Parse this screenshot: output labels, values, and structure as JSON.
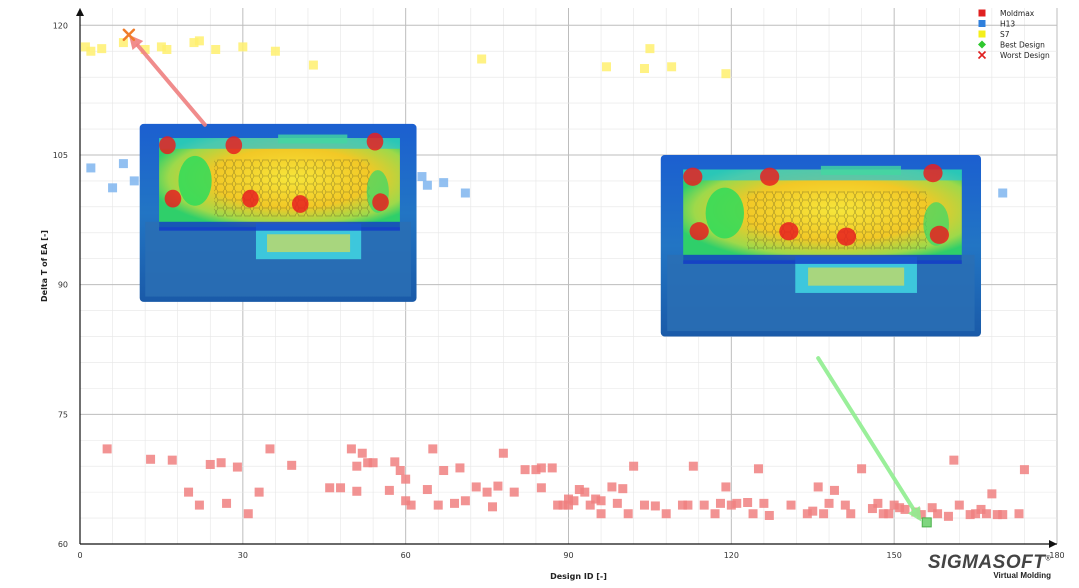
{
  "chart_data": {
    "type": "scatter",
    "xlabel": "Design ID [-]",
    "ylabel": "Delta T of EA [-]",
    "xlim": [
      0,
      180
    ],
    "ylim": [
      60,
      122
    ],
    "x_ticks": [
      "0",
      "30",
      "60",
      "90",
      "120",
      "150",
      "180"
    ],
    "x_tick_values": [
      0,
      30,
      60,
      90,
      120,
      150,
      180
    ],
    "y_ticks": [
      "60",
      "75",
      "90",
      "105",
      "120"
    ],
    "y_tick_values": [
      60,
      75,
      90,
      105,
      120
    ],
    "grid": true,
    "legend_position": "top-right",
    "series": [
      {
        "name": "Moldmax",
        "color": "#f08080",
        "points": [
          [
            5,
            71
          ],
          [
            13,
            69.8
          ],
          [
            17,
            69.7
          ],
          [
            20,
            66
          ],
          [
            22,
            64.5
          ],
          [
            24,
            69.2
          ],
          [
            26,
            69.4
          ],
          [
            27,
            64.7
          ],
          [
            29,
            68.9
          ],
          [
            31,
            63.5
          ],
          [
            33,
            66
          ],
          [
            35,
            71
          ],
          [
            39,
            69.1
          ],
          [
            46,
            66.5
          ],
          [
            48,
            66.5
          ],
          [
            50,
            71
          ],
          [
            51,
            69
          ],
          [
            51,
            66.1
          ],
          [
            52,
            70.5
          ],
          [
            53,
            69.4
          ],
          [
            54,
            69.4
          ],
          [
            57,
            66.2
          ],
          [
            58,
            69.5
          ],
          [
            59,
            68.5
          ],
          [
            60,
            67.5
          ],
          [
            60,
            65
          ],
          [
            61,
            64.5
          ],
          [
            64,
            66.3
          ],
          [
            65,
            71
          ],
          [
            66,
            64.5
          ],
          [
            67,
            68.5
          ],
          [
            69,
            64.7
          ],
          [
            70,
            68.8
          ],
          [
            71,
            65
          ],
          [
            73,
            66.6
          ],
          [
            75,
            66
          ],
          [
            76,
            64.3
          ],
          [
            77,
            66.7
          ],
          [
            78,
            70.5
          ],
          [
            80,
            66
          ],
          [
            82,
            68.6
          ],
          [
            84,
            68.6
          ],
          [
            85,
            66.5
          ],
          [
            85,
            68.8
          ],
          [
            87,
            68.8
          ],
          [
            88,
            64.5
          ],
          [
            89,
            64.5
          ],
          [
            90,
            64.5
          ],
          [
            90,
            65.2
          ],
          [
            91,
            65
          ],
          [
            92,
            66.3
          ],
          [
            93,
            66
          ],
          [
            94,
            64.5
          ],
          [
            95,
            65.2
          ],
          [
            96,
            65
          ],
          [
            96,
            63.5
          ],
          [
            98,
            66.6
          ],
          [
            99,
            64.7
          ],
          [
            100,
            66.4
          ],
          [
            101,
            63.5
          ],
          [
            102,
            69
          ],
          [
            104,
            64.5
          ],
          [
            106,
            64.4
          ],
          [
            108,
            63.5
          ],
          [
            111,
            64.5
          ],
          [
            112,
            64.5
          ],
          [
            113,
            69
          ],
          [
            115,
            64.5
          ],
          [
            117,
            63.5
          ],
          [
            118,
            64.7
          ],
          [
            119,
            66.6
          ],
          [
            120,
            64.5
          ],
          [
            121,
            64.7
          ],
          [
            123,
            64.8
          ],
          [
            124,
            63.5
          ],
          [
            125,
            68.7
          ],
          [
            126,
            64.7
          ],
          [
            127,
            63.3
          ],
          [
            131,
            64.5
          ],
          [
            134,
            63.5
          ],
          [
            135,
            63.8
          ],
          [
            136,
            66.6
          ],
          [
            137,
            63.5
          ],
          [
            138,
            64.7
          ],
          [
            139,
            66.2
          ],
          [
            141,
            64.5
          ],
          [
            142,
            63.5
          ],
          [
            144,
            68.7
          ],
          [
            146,
            64.1
          ],
          [
            147,
            64.7
          ],
          [
            148,
            63.5
          ],
          [
            149,
            63.5
          ],
          [
            150,
            64.5
          ],
          [
            151,
            64.2
          ],
          [
            152,
            64
          ],
          [
            154,
            63.7
          ],
          [
            155,
            63.4
          ],
          [
            157,
            64.2
          ],
          [
            158,
            63.5
          ],
          [
            160,
            63.2
          ],
          [
            161,
            69.7
          ],
          [
            162,
            64.5
          ],
          [
            164,
            63.4
          ],
          [
            165,
            63.5
          ],
          [
            166,
            64
          ],
          [
            167,
            63.5
          ],
          [
            168,
            65.8
          ],
          [
            169,
            63.4
          ],
          [
            170,
            63.4
          ],
          [
            173,
            63.5
          ],
          [
            174,
            68.6
          ]
        ]
      },
      {
        "name": "H13",
        "color": "#7fb5ee",
        "points": [
          [
            2,
            103.5
          ],
          [
            6,
            101.2
          ],
          [
            8,
            104
          ],
          [
            10,
            102
          ],
          [
            12,
            103.7
          ],
          [
            14,
            103.5
          ],
          [
            63,
            102.5
          ],
          [
            64,
            101.5
          ],
          [
            67,
            101.8
          ],
          [
            71,
            100.6
          ],
          [
            123,
            103.5
          ],
          [
            170,
            100.6
          ]
        ]
      },
      {
        "name": "S7",
        "color": "#fff06e",
        "points": [
          [
            1,
            117.5
          ],
          [
            2,
            117
          ],
          [
            4,
            117.3
          ],
          [
            8,
            118
          ],
          [
            12,
            117.2
          ],
          [
            15,
            117.5
          ],
          [
            16,
            117.2
          ],
          [
            21,
            118
          ],
          [
            22,
            118.2
          ],
          [
            25,
            117.2
          ],
          [
            30,
            117.5
          ],
          [
            36,
            117
          ],
          [
            43,
            115.4
          ],
          [
            74,
            116.1
          ],
          [
            97,
            115.2
          ],
          [
            104,
            115
          ],
          [
            105,
            117.3
          ],
          [
            109,
            115.2
          ],
          [
            119,
            114.4
          ]
        ]
      },
      {
        "name": "Best Design",
        "color": "#7ed67e",
        "marker": "diamond",
        "points": [
          [
            156,
            62.5
          ]
        ]
      },
      {
        "name": "Worst Design",
        "color": "#f07c2a",
        "marker": "x",
        "points": [
          [
            9,
            118.9
          ]
        ]
      }
    ],
    "annotations": [
      {
        "type": "arrow",
        "color": "#ef8080",
        "from": [
          23,
          108.5
        ],
        "to": [
          9,
          118.9
        ]
      },
      {
        "type": "arrow",
        "color": "#90ee90",
        "from": [
          136,
          81.5
        ],
        "to": [
          155,
          62.6
        ]
      },
      {
        "type": "image",
        "description": "thermal simulation render of mold insert (worst design)",
        "x_range": [
          11,
          62
        ],
        "y_range": [
          88,
          108.6
        ]
      },
      {
        "type": "image",
        "description": "thermal simulation render of mold insert (best design)",
        "x_range": [
          107,
          166
        ],
        "y_range": [
          84,
          105
        ]
      }
    ]
  },
  "legend": [
    {
      "label": "Moldmax",
      "color": "#e02020",
      "marker": "square"
    },
    {
      "label": "H13",
      "color": "#2f7fdc",
      "marker": "square"
    },
    {
      "label": "S7",
      "color": "#f4ef1a",
      "marker": "square"
    },
    {
      "label": "Best Design",
      "color": "#2fc82f",
      "marker": "diamond"
    },
    {
      "label": "Worst Design",
      "color": "#e02020",
      "marker": "x"
    }
  ],
  "brand": {
    "name": "SIGMASOFT",
    "mark": "®",
    "tagline": "Virtual Molding"
  }
}
